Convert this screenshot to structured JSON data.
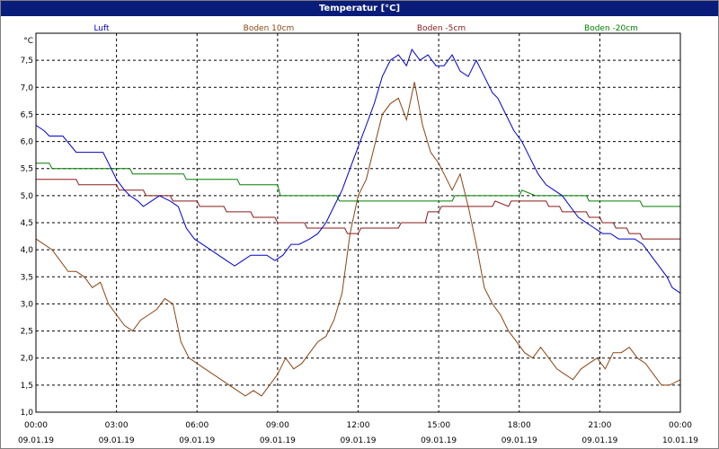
{
  "window": {
    "title": "Temperatur [°C]"
  },
  "colors": {
    "title_bar": "#0a1c7a",
    "plot_border": "#000000",
    "grid": "#000000"
  },
  "chart_data": {
    "type": "line",
    "title": "Temperatur [°C]",
    "ylabel": "°C",
    "xlabel": "",
    "grid": true,
    "legend_placement": "top",
    "ylim": [
      1.0,
      8.0
    ],
    "xlim": [
      0,
      24
    ],
    "y_ticks": [
      "1,0",
      "1,5",
      "2,0",
      "2,5",
      "3,0",
      "3,5",
      "4,0",
      "4,5",
      "5,0",
      "5,5",
      "6,0",
      "6,5",
      "7,0",
      "7,5"
    ],
    "y_tick_values": [
      1.0,
      1.5,
      2.0,
      2.5,
      3.0,
      3.5,
      4.0,
      4.5,
      5.0,
      5.5,
      6.0,
      6.5,
      7.0,
      7.5
    ],
    "x_ticks": [
      {
        "time": "00:00",
        "date": "09.01.19",
        "hour": 0
      },
      {
        "time": "03:00",
        "date": "09.01.19",
        "hour": 3
      },
      {
        "time": "06:00",
        "date": "09.01.19",
        "hour": 6
      },
      {
        "time": "09:00",
        "date": "09.01.19",
        "hour": 9
      },
      {
        "time": "12:00",
        "date": "09.01.19",
        "hour": 12
      },
      {
        "time": "15:00",
        "date": "09.01.19",
        "hour": 15
      },
      {
        "time": "18:00",
        "date": "09.01.19",
        "hour": 18
      },
      {
        "time": "21:00",
        "date": "09.01.19",
        "hour": 21
      },
      {
        "time": "00:00",
        "date": "10.01.19",
        "hour": 24
      }
    ],
    "series": [
      {
        "name": "Luft",
        "color": "#0000cc",
        "points": [
          [
            0.0,
            6.3
          ],
          [
            0.3,
            6.2
          ],
          [
            0.5,
            6.1
          ],
          [
            1.0,
            6.1
          ],
          [
            1.5,
            5.8
          ],
          [
            2.0,
            5.8
          ],
          [
            2.5,
            5.8
          ],
          [
            3.0,
            5.3
          ],
          [
            3.3,
            5.1
          ],
          [
            3.5,
            5.0
          ],
          [
            3.8,
            4.9
          ],
          [
            4.0,
            4.8
          ],
          [
            4.3,
            4.9
          ],
          [
            4.6,
            5.0
          ],
          [
            5.0,
            4.9
          ],
          [
            5.3,
            4.8
          ],
          [
            5.6,
            4.4
          ],
          [
            5.9,
            4.2
          ],
          [
            6.2,
            4.1
          ],
          [
            6.5,
            4.0
          ],
          [
            6.8,
            3.9
          ],
          [
            7.1,
            3.8
          ],
          [
            7.4,
            3.7
          ],
          [
            7.7,
            3.8
          ],
          [
            8.0,
            3.9
          ],
          [
            8.3,
            3.9
          ],
          [
            8.6,
            3.9
          ],
          [
            8.9,
            3.8
          ],
          [
            9.2,
            3.9
          ],
          [
            9.5,
            4.1
          ],
          [
            9.8,
            4.1
          ],
          [
            10.2,
            4.2
          ],
          [
            10.5,
            4.3
          ],
          [
            10.8,
            4.5
          ],
          [
            11.1,
            4.8
          ],
          [
            11.4,
            5.1
          ],
          [
            11.7,
            5.5
          ],
          [
            12.0,
            5.9
          ],
          [
            12.3,
            6.3
          ],
          [
            12.6,
            6.7
          ],
          [
            12.9,
            7.2
          ],
          [
            13.2,
            7.5
          ],
          [
            13.5,
            7.6
          ],
          [
            13.8,
            7.4
          ],
          [
            14.0,
            7.7
          ],
          [
            14.3,
            7.5
          ],
          [
            14.6,
            7.6
          ],
          [
            14.9,
            7.4
          ],
          [
            15.2,
            7.4
          ],
          [
            15.5,
            7.6
          ],
          [
            15.8,
            7.3
          ],
          [
            16.1,
            7.2
          ],
          [
            16.4,
            7.5
          ],
          [
            16.7,
            7.2
          ],
          [
            17.0,
            6.9
          ],
          [
            17.2,
            6.8
          ],
          [
            17.5,
            6.5
          ],
          [
            17.8,
            6.2
          ],
          [
            18.1,
            6.0
          ],
          [
            18.4,
            5.7
          ],
          [
            18.7,
            5.4
          ],
          [
            19.0,
            5.2
          ],
          [
            19.3,
            5.1
          ],
          [
            19.6,
            5.0
          ],
          [
            19.9,
            4.8
          ],
          [
            20.2,
            4.6
          ],
          [
            20.5,
            4.5
          ],
          [
            20.8,
            4.4
          ],
          [
            21.1,
            4.3
          ],
          [
            21.4,
            4.3
          ],
          [
            21.7,
            4.2
          ],
          [
            22.0,
            4.2
          ],
          [
            22.3,
            4.2
          ],
          [
            22.6,
            4.1
          ],
          [
            22.9,
            3.9
          ],
          [
            23.2,
            3.7
          ],
          [
            23.5,
            3.5
          ],
          [
            23.7,
            3.3
          ],
          [
            24.0,
            3.2
          ]
        ]
      },
      {
        "name": "Boden 10cm",
        "color": "#8b4513",
        "points": [
          [
            0.0,
            4.2
          ],
          [
            0.3,
            4.1
          ],
          [
            0.6,
            4.0
          ],
          [
            0.9,
            3.8
          ],
          [
            1.2,
            3.6
          ],
          [
            1.5,
            3.6
          ],
          [
            1.8,
            3.5
          ],
          [
            2.1,
            3.3
          ],
          [
            2.4,
            3.4
          ],
          [
            2.7,
            3.0
          ],
          [
            3.0,
            2.8
          ],
          [
            3.3,
            2.6
          ],
          [
            3.6,
            2.5
          ],
          [
            3.9,
            2.7
          ],
          [
            4.2,
            2.8
          ],
          [
            4.5,
            2.9
          ],
          [
            4.8,
            3.1
          ],
          [
            5.1,
            3.0
          ],
          [
            5.4,
            2.3
          ],
          [
            5.7,
            2.0
          ],
          [
            6.0,
            1.9
          ],
          [
            6.3,
            1.8
          ],
          [
            6.6,
            1.7
          ],
          [
            6.9,
            1.6
          ],
          [
            7.2,
            1.5
          ],
          [
            7.5,
            1.4
          ],
          [
            7.8,
            1.3
          ],
          [
            8.1,
            1.4
          ],
          [
            8.4,
            1.3
          ],
          [
            8.7,
            1.5
          ],
          [
            9.0,
            1.7
          ],
          [
            9.3,
            2.0
          ],
          [
            9.6,
            1.8
          ],
          [
            9.9,
            1.9
          ],
          [
            10.2,
            2.1
          ],
          [
            10.5,
            2.3
          ],
          [
            10.8,
            2.4
          ],
          [
            11.1,
            2.7
          ],
          [
            11.4,
            3.2
          ],
          [
            11.7,
            4.3
          ],
          [
            12.0,
            5.0
          ],
          [
            12.3,
            5.3
          ],
          [
            12.6,
            5.9
          ],
          [
            12.9,
            6.5
          ],
          [
            13.2,
            6.7
          ],
          [
            13.5,
            6.8
          ],
          [
            13.8,
            6.4
          ],
          [
            14.1,
            7.1
          ],
          [
            14.4,
            6.3
          ],
          [
            14.7,
            5.8
          ],
          [
            15.0,
            5.6
          ],
          [
            15.3,
            5.3
          ],
          [
            15.5,
            5.1
          ],
          [
            15.8,
            5.4
          ],
          [
            16.1,
            4.8
          ],
          [
            16.4,
            4.1
          ],
          [
            16.7,
            3.3
          ],
          [
            17.0,
            3.0
          ],
          [
            17.3,
            2.8
          ],
          [
            17.6,
            2.5
          ],
          [
            17.9,
            2.3
          ],
          [
            18.2,
            2.1
          ],
          [
            18.5,
            2.0
          ],
          [
            18.8,
            2.2
          ],
          [
            19.1,
            2.0
          ],
          [
            19.4,
            1.8
          ],
          [
            19.7,
            1.7
          ],
          [
            20.0,
            1.6
          ],
          [
            20.3,
            1.8
          ],
          [
            20.6,
            1.9
          ],
          [
            20.9,
            2.0
          ],
          [
            21.2,
            1.8
          ],
          [
            21.5,
            2.1
          ],
          [
            21.8,
            2.1
          ],
          [
            22.1,
            2.2
          ],
          [
            22.4,
            2.0
          ],
          [
            22.7,
            1.9
          ],
          [
            23.0,
            1.7
          ],
          [
            23.3,
            1.5
          ],
          [
            23.6,
            1.5
          ],
          [
            24.0,
            1.6
          ]
        ]
      },
      {
        "name": "Boden -5cm",
        "color": "#8b1a1a",
        "points": [
          [
            0.0,
            5.3
          ],
          [
            1.5,
            5.3
          ],
          [
            1.6,
            5.2
          ],
          [
            3.0,
            5.2
          ],
          [
            3.1,
            5.1
          ],
          [
            4.0,
            5.1
          ],
          [
            4.1,
            5.0
          ],
          [
            5.0,
            5.0
          ],
          [
            5.1,
            4.9
          ],
          [
            6.0,
            4.9
          ],
          [
            6.1,
            4.8
          ],
          [
            7.0,
            4.8
          ],
          [
            7.1,
            4.7
          ],
          [
            8.0,
            4.7
          ],
          [
            8.1,
            4.6
          ],
          [
            8.9,
            4.6
          ],
          [
            9.0,
            4.5
          ],
          [
            10.0,
            4.5
          ],
          [
            10.1,
            4.4
          ],
          [
            11.5,
            4.4
          ],
          [
            11.6,
            4.3
          ],
          [
            12.0,
            4.3
          ],
          [
            12.1,
            4.4
          ],
          [
            13.5,
            4.4
          ],
          [
            13.6,
            4.5
          ],
          [
            14.5,
            4.5
          ],
          [
            14.6,
            4.7
          ],
          [
            15.0,
            4.7
          ],
          [
            15.1,
            4.8
          ],
          [
            17.0,
            4.8
          ],
          [
            17.1,
            4.9
          ],
          [
            17.6,
            4.8
          ],
          [
            17.7,
            4.9
          ],
          [
            19.0,
            4.9
          ],
          [
            19.1,
            4.8
          ],
          [
            19.5,
            4.8
          ],
          [
            19.6,
            4.7
          ],
          [
            20.5,
            4.7
          ],
          [
            20.6,
            4.6
          ],
          [
            21.0,
            4.6
          ],
          [
            21.1,
            4.5
          ],
          [
            21.5,
            4.5
          ],
          [
            21.6,
            4.4
          ],
          [
            22.0,
            4.4
          ],
          [
            22.1,
            4.3
          ],
          [
            22.5,
            4.3
          ],
          [
            22.6,
            4.2
          ],
          [
            24.0,
            4.2
          ]
        ]
      },
      {
        "name": "Boden -20cm",
        "color": "#008000",
        "points": [
          [
            0.0,
            5.6
          ],
          [
            0.5,
            5.6
          ],
          [
            0.6,
            5.5
          ],
          [
            3.5,
            5.5
          ],
          [
            3.6,
            5.4
          ],
          [
            5.5,
            5.4
          ],
          [
            5.6,
            5.3
          ],
          [
            7.5,
            5.3
          ],
          [
            7.6,
            5.2
          ],
          [
            9.0,
            5.2
          ],
          [
            9.1,
            5.0
          ],
          [
            11.2,
            5.0
          ],
          [
            11.3,
            4.9
          ],
          [
            15.5,
            4.9
          ],
          [
            15.6,
            5.0
          ],
          [
            18.0,
            5.0
          ],
          [
            18.1,
            5.1
          ],
          [
            18.6,
            5.0
          ],
          [
            20.5,
            5.0
          ],
          [
            20.6,
            4.9
          ],
          [
            22.5,
            4.9
          ],
          [
            22.6,
            4.8
          ],
          [
            24.0,
            4.8
          ]
        ]
      }
    ]
  }
}
